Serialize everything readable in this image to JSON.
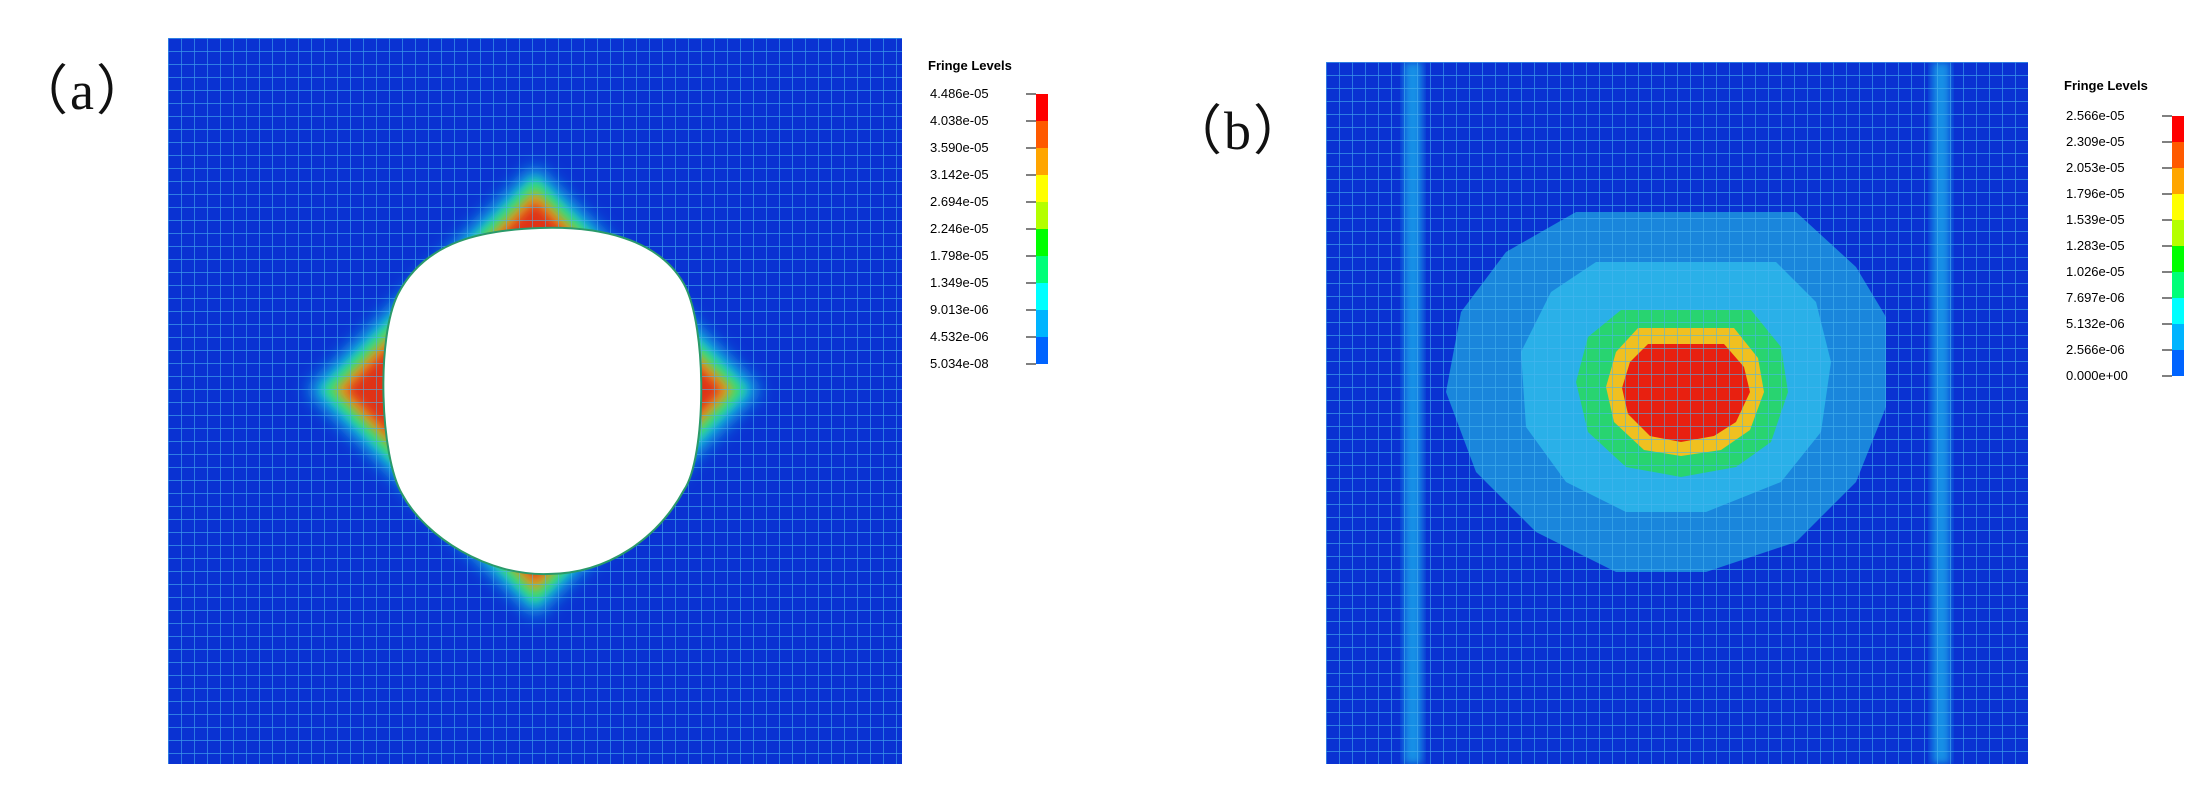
{
  "panels": [
    {
      "label": "（a）",
      "legend": {
        "title": "Fringe Levels",
        "levels": [
          "4.486e-05",
          "4.038e-05",
          "3.590e-05",
          "3.142e-05",
          "2.694e-05",
          "2.246e-05",
          "1.798e-05",
          "1.349e-05",
          "9.013e-06",
          "4.532e-06",
          "5.034e-08"
        ]
      }
    },
    {
      "label": "（b）",
      "legend": {
        "title": "Fringe Levels",
        "levels": [
          "2.566e-05",
          "2.309e-05",
          "2.053e-05",
          "1.796e-05",
          "1.539e-05",
          "1.283e-05",
          "1.026e-05",
          "7.697e-06",
          "5.132e-06",
          "2.566e-06",
          "0.000e+00"
        ]
      }
    }
  ],
  "colors": {
    "fringe_scale": [
      "#ff0000",
      "#ff5a00",
      "#ffa500",
      "#ffff00",
      "#b4ff00",
      "#00ff00",
      "#00ff78",
      "#00ffff",
      "#00b4ff",
      "#0064ff",
      "#0000ff"
    ],
    "mesh_background": "#0a32d2",
    "mesh_lines": "#3aa0e6"
  }
}
